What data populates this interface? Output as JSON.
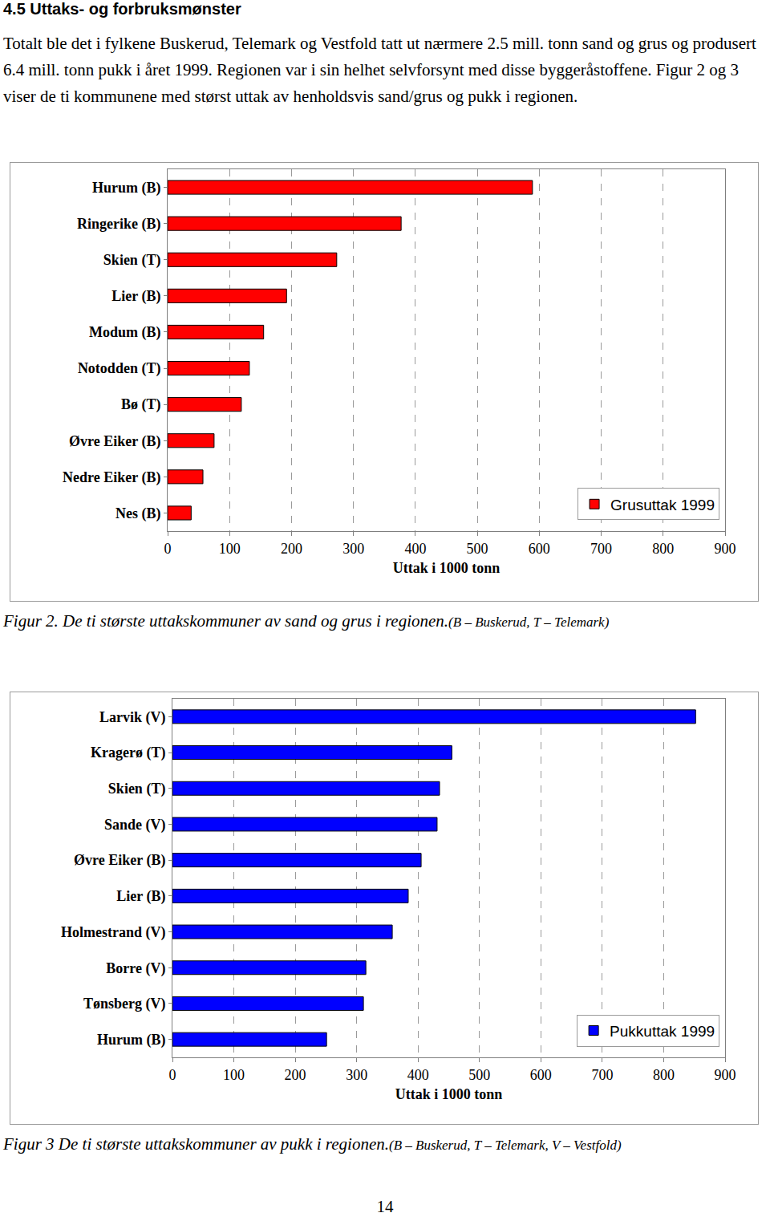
{
  "heading": "4.5 Uttaks- og forbruksmønster",
  "paragraph": "Totalt ble det i fylkene Buskerud, Telemark og Vestfold tatt ut nærmere 2.5 mill. tonn sand og grus og produsert 6.4 mill. tonn pukk i året 1999. Regionen var i sin helhet selvforsynt med disse byggeråstoffene. Figur 2 og 3 viser de ti kommunene med størst uttak av henholdsvis sand/grus og pukk i regionen.",
  "chart_data": [
    {
      "type": "bar",
      "orientation": "horizontal",
      "categories": [
        "Hurum (B)",
        "Ringerike (B)",
        "Skien (T)",
        "Lier (B)",
        "Modum (B)",
        "Notodden (T)",
        "Bø (T)",
        "Øvre Eiker (B)",
        "Nedre Eiker (B)",
        "Nes (B)"
      ],
      "series": [
        {
          "name": "Grusuttak 1999",
          "color": "#ff0000",
          "values": [
            589,
            377,
            273,
            192,
            155,
            132,
            119,
            75,
            57,
            38
          ]
        }
      ],
      "x_label": "Uttak i 1000 tonn",
      "xlim": [
        0,
        900
      ],
      "xticks": [
        0,
        100,
        200,
        300,
        400,
        500,
        600,
        700,
        800,
        900
      ],
      "grid": true,
      "legend": "lower right",
      "caption": "Figur 2. De ti største uttakskommuner av sand og grus i regionen.",
      "caption_note": "(B – Buskerud, T – Telemark)"
    },
    {
      "type": "bar",
      "orientation": "horizontal",
      "categories": [
        "Larvik (V)",
        "Kragerø (T)",
        "Skien (T)",
        "Sande (V)",
        "Øvre Eiker (B)",
        "Lier (B)",
        "Holmestrand (V)",
        "Borre (V)",
        "Tønsberg (V)",
        "Hurum (B)"
      ],
      "series": [
        {
          "name": "Pukkuttak 1999",
          "color": "#0000ff",
          "values": [
            852,
            455,
            435,
            431,
            405,
            384,
            358,
            315,
            311,
            251
          ]
        }
      ],
      "x_label": "Uttak i 1000 tonn",
      "xlim": [
        0,
        900
      ],
      "xticks": [
        0,
        100,
        200,
        300,
        400,
        500,
        600,
        700,
        800,
        900
      ],
      "grid": true,
      "legend": "lower right",
      "caption": "Figur 3  De ti største uttakskommuner av pukk i regionen.",
      "caption_note": "(B – Buskerud, T – Telemark, V – Vestfold)"
    }
  ],
  "page_number": "14"
}
